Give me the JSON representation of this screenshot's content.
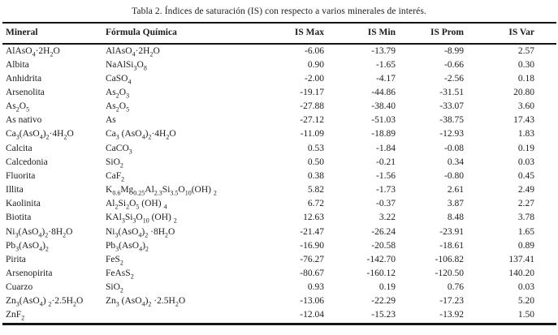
{
  "title": "Tabla 2. Índices de saturación (IS) con respecto a varios minerales de interés.",
  "table": {
    "columns": [
      "Mineral",
      "Fórmula Química",
      "IS Max",
      "IS Min",
      "IS Prom",
      "IS Var"
    ],
    "rows": [
      {
        "mineral": "AlAsO4·2H2O",
        "formula": "AlAsO4·2H2O",
        "is_max": "-6.06",
        "is_min": "-13.79",
        "is_prom": "-8.99",
        "is_var": "2.57"
      },
      {
        "mineral": "Albita",
        "formula": "NaAlSi3O8",
        "is_max": "0.90",
        "is_min": "-1.65",
        "is_prom": "-0.66",
        "is_var": "0.30"
      },
      {
        "mineral": "Anhidrita",
        "formula": "CaSO4",
        "is_max": "-2.00",
        "is_min": "-4.17",
        "is_prom": "-2.56",
        "is_var": "0.18"
      },
      {
        "mineral": "Arsenolita",
        "formula": "As2O3",
        "is_max": "-19.17",
        "is_min": "-44.86",
        "is_prom": "-31.51",
        "is_var": "20.80"
      },
      {
        "mineral": "As2O5",
        "formula": "As2O5",
        "is_max": "-27.88",
        "is_min": "-38.40",
        "is_prom": "-33.07",
        "is_var": "3.60"
      },
      {
        "mineral": "As nativo",
        "formula": "As",
        "is_max": "-27.12",
        "is_min": "-51.03",
        "is_prom": "-38.75",
        "is_var": "17.43"
      },
      {
        "mineral": "Ca3(AsO4)2·4H2O",
        "formula": "Ca3 (AsO4)2·4H2O",
        "is_max": "-11.09",
        "is_min": "-18.89",
        "is_prom": "-12.93",
        "is_var": "1.83"
      },
      {
        "mineral": "Calcita",
        "formula": "CaCO3",
        "is_max": "0.53",
        "is_min": "-1.84",
        "is_prom": "-0.08",
        "is_var": "0.19"
      },
      {
        "mineral": "Calcedonia",
        "formula": "SiO2",
        "is_max": "0.50",
        "is_min": "-0.21",
        "is_prom": "0.34",
        "is_var": "0.03"
      },
      {
        "mineral": "Fluorita",
        "formula": "CaF2",
        "is_max": "0.38",
        "is_min": "-1.56",
        "is_prom": "-0.80",
        "is_var": "0.45"
      },
      {
        "mineral": "Illita",
        "formula": "K0.6Mg0.25Al2.3Si3.5O10(OH) 2",
        "is_max": "5.82",
        "is_min": "-1.73",
        "is_prom": "2.61",
        "is_var": "2.49"
      },
      {
        "mineral": "Kaolinita",
        "formula": "Al2Si2O5 (OH) 4",
        "is_max": "6.72",
        "is_min": "-0.37",
        "is_prom": "3.87",
        "is_var": "2.27"
      },
      {
        "mineral": "Biotita",
        "formula": "KAl3Si3O10 (OH) 2",
        "is_max": "12.63",
        "is_min": "3.22",
        "is_prom": "8.48",
        "is_var": "3.78"
      },
      {
        "mineral": "Ni3(AsO4)2·8H2O",
        "formula": "Ni3(AsO4)2 ·8H2O",
        "is_max": "-21.47",
        "is_min": "-26.24",
        "is_prom": "-23.91",
        "is_var": "1.65"
      },
      {
        "mineral": "Pb3(AsO4)2",
        "formula": "Pb3(AsO4)2",
        "is_max": "-16.90",
        "is_min": "-20.58",
        "is_prom": "-18.61",
        "is_var": "0.89"
      },
      {
        "mineral": "Pirita",
        "formula": "FeS2",
        "is_max": "-76.27",
        "is_min": "-142.70",
        "is_prom": "-106.82",
        "is_var": "137.41"
      },
      {
        "mineral": "Arsenopirita",
        "formula": "FeAsS2",
        "is_max": "-80.67",
        "is_min": "-160.12",
        "is_prom": "-120.50",
        "is_var": "140.20"
      },
      {
        "mineral": "Cuarzo",
        "formula": "SiO2",
        "is_max": "0.93",
        "is_min": "0.19",
        "is_prom": "0.76",
        "is_var": "0.03"
      },
      {
        "mineral": "Zn3(AsO4) 2·2.5H2O",
        "formula": "Zn3 (AsO4)2 ·2.5H2O",
        "is_max": "-13.06",
        "is_min": "-22.29",
        "is_prom": "-17.23",
        "is_var": "5.20"
      },
      {
        "mineral": "ZnF2",
        "formula": "",
        "is_max": "-12.04",
        "is_min": "-15.23",
        "is_prom": "-13.92",
        "is_var": "1.50"
      }
    ]
  }
}
